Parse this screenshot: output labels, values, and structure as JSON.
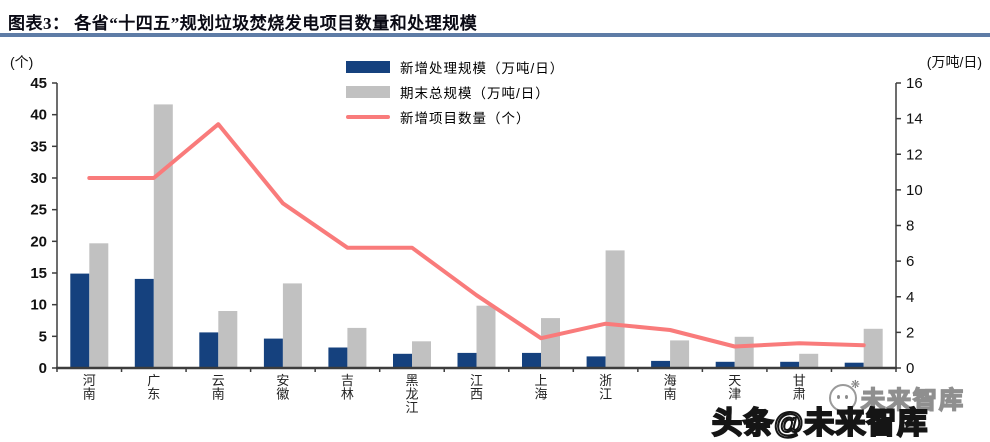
{
  "header": {
    "title": "图表3： 各省“十四五”规划垃圾焚烧发电项目数量和处理规模"
  },
  "chart_data": {
    "type": "bar+line combo",
    "categories": [
      "河南",
      "广东",
      "云南",
      "安徽",
      "吉林",
      "黑龙江",
      "江西",
      "上海",
      "浙江",
      "海南",
      "天津",
      "甘肃",
      ""
    ],
    "left_axis": {
      "unit": "(个)",
      "min": 0,
      "max": 45,
      "step": 5
    },
    "right_axis": {
      "unit": "(万吨/日)",
      "min": 0,
      "max": 16,
      "step": 2
    },
    "grid": false,
    "legend_position": "top-center",
    "series": [
      {
        "name": "新增处理规模（万吨/日）",
        "type": "bar",
        "axis": "right",
        "color": "#15417e",
        "values": [
          5.3,
          5.0,
          2.0,
          1.65,
          1.15,
          0.8,
          0.85,
          0.85,
          0.65,
          0.4,
          0.35,
          0.35,
          0.3
        ]
      },
      {
        "name": "期末总规模（万吨/日）",
        "type": "bar",
        "axis": "right",
        "color": "#c1c1c1",
        "values": [
          7.0,
          14.8,
          3.2,
          4.75,
          2.25,
          1.5,
          3.5,
          2.8,
          6.6,
          1.55,
          1.75,
          0.8,
          2.2
        ]
      },
      {
        "name": "新增项目数量（个）",
        "type": "line",
        "axis": "left",
        "color": "#f97b7b",
        "values": [
          30,
          30,
          38.5,
          26,
          19,
          19,
          11.5,
          4.7,
          7.0,
          6.0,
          3.4,
          3.9,
          3.6
        ]
      }
    ]
  },
  "watermarks": {
    "small": "未来智库",
    "large": "头条@未来智库",
    "sparkle": "❋"
  }
}
